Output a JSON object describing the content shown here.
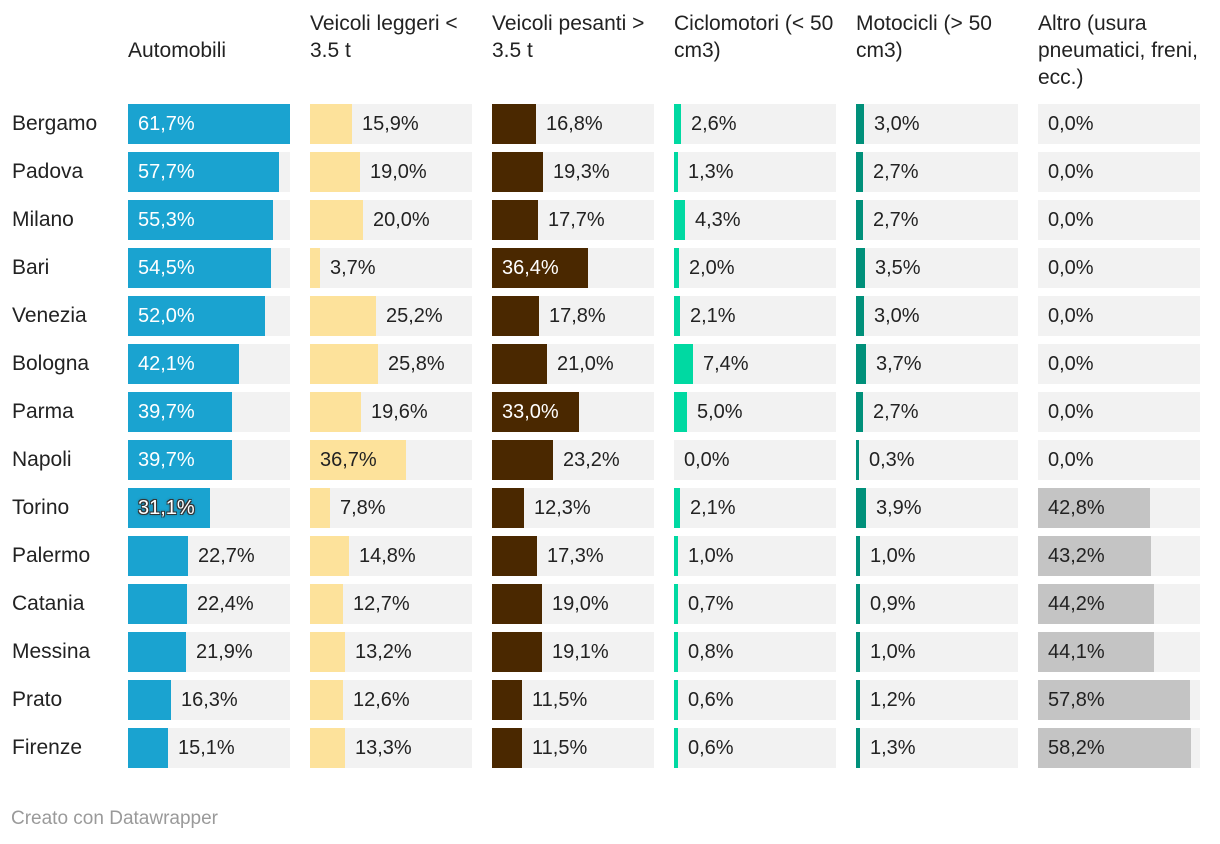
{
  "chart_data": {
    "type": "table",
    "columns": [
      {
        "key": "auto",
        "label": "Automobili",
        "color": "#1aa3d0"
      },
      {
        "key": "leggeri",
        "label": "Veicoli leggeri < 3.5 t",
        "color": "#fde29b"
      },
      {
        "key": "pesanti",
        "label": "Veicoli pesanti > 3.5 t",
        "color": "#4a2800"
      },
      {
        "key": "ciclo",
        "label": "Ciclomotori (< 50 cm3)",
        "color": "#00d9a2"
      },
      {
        "key": "moto",
        "label": "Motocicli (> 50 cm3)",
        "color": "#00907a"
      },
      {
        "key": "altro",
        "label": "Altro (usura pneumatici, freni, ecc.)",
        "color": "#c4c4c4"
      }
    ],
    "scale_max": 61.7,
    "rows": [
      {
        "city": "Bergamo",
        "values": [
          61.7,
          15.9,
          16.8,
          2.6,
          3.0,
          0.0
        ],
        "labels": [
          "61,7%",
          "15,9%",
          "16,8%",
          "2,6%",
          "3,0%",
          "0,0%"
        ]
      },
      {
        "city": "Padova",
        "values": [
          57.7,
          19.0,
          19.3,
          1.3,
          2.7,
          0.0
        ],
        "labels": [
          "57,7%",
          "19,0%",
          "19,3%",
          "1,3%",
          "2,7%",
          "0,0%"
        ]
      },
      {
        "city": "Milano",
        "values": [
          55.3,
          20.0,
          17.7,
          4.3,
          2.7,
          0.0
        ],
        "labels": [
          "55,3%",
          "20,0%",
          "17,7%",
          "4,3%",
          "2,7%",
          "0,0%"
        ]
      },
      {
        "city": "Bari",
        "values": [
          54.5,
          3.7,
          36.4,
          2.0,
          3.5,
          0.0
        ],
        "labels": [
          "54,5%",
          "3,7%",
          "36,4%",
          "2,0%",
          "3,5%",
          "0,0%"
        ]
      },
      {
        "city": "Venezia",
        "values": [
          52.0,
          25.2,
          17.8,
          2.1,
          3.0,
          0.0
        ],
        "labels": [
          "52,0%",
          "25,2%",
          "17,8%",
          "2,1%",
          "3,0%",
          "0,0%"
        ]
      },
      {
        "city": "Bologna",
        "values": [
          42.1,
          25.8,
          21.0,
          7.4,
          3.7,
          0.0
        ],
        "labels": [
          "42,1%",
          "25,8%",
          "21,0%",
          "7,4%",
          "3,7%",
          "0,0%"
        ]
      },
      {
        "city": "Parma",
        "values": [
          39.7,
          19.6,
          33.0,
          5.0,
          2.7,
          0.0
        ],
        "labels": [
          "39,7%",
          "19,6%",
          "33,0%",
          "5,0%",
          "2,7%",
          "0,0%"
        ]
      },
      {
        "city": "Napoli",
        "values": [
          39.7,
          36.7,
          23.2,
          0.0,
          0.3,
          0.0
        ],
        "labels": [
          "39,7%",
          "36,7%",
          "23,2%",
          "0,0%",
          "0,3%",
          "0,0%"
        ]
      },
      {
        "city": "Torino",
        "values": [
          31.1,
          7.8,
          12.3,
          2.1,
          3.9,
          42.8
        ],
        "labels": [
          "31,1%",
          "7,8%",
          "12,3%",
          "2,1%",
          "3,9%",
          "42,8%"
        ]
      },
      {
        "city": "Palermo",
        "values": [
          22.7,
          14.8,
          17.3,
          1.0,
          1.0,
          43.2
        ],
        "labels": [
          "22,7%",
          "14,8%",
          "17,3%",
          "1,0%",
          "1,0%",
          "43,2%"
        ]
      },
      {
        "city": "Catania",
        "values": [
          22.4,
          12.7,
          19.0,
          0.7,
          0.9,
          44.2
        ],
        "labels": [
          "22,4%",
          "12,7%",
          "19,0%",
          "0,7%",
          "0,9%",
          "44,2%"
        ]
      },
      {
        "city": "Messina",
        "values": [
          21.9,
          13.2,
          19.1,
          0.8,
          1.0,
          44.1
        ],
        "labels": [
          "21,9%",
          "13,2%",
          "19,1%",
          "0,8%",
          "1,0%",
          "44,1%"
        ]
      },
      {
        "city": "Prato",
        "values": [
          16.3,
          12.6,
          11.5,
          0.6,
          1.2,
          57.8
        ],
        "labels": [
          "16,3%",
          "12,6%",
          "11,5%",
          "0,6%",
          "1,2%",
          "57,8%"
        ]
      },
      {
        "city": "Firenze",
        "values": [
          15.1,
          13.3,
          11.5,
          0.6,
          1.3,
          58.2
        ],
        "labels": [
          "15,1%",
          "13,3%",
          "11,5%",
          "0,6%",
          "1,3%",
          "58,2%"
        ]
      }
    ]
  },
  "footer": {
    "credit": "Creato con Datawrapper"
  }
}
